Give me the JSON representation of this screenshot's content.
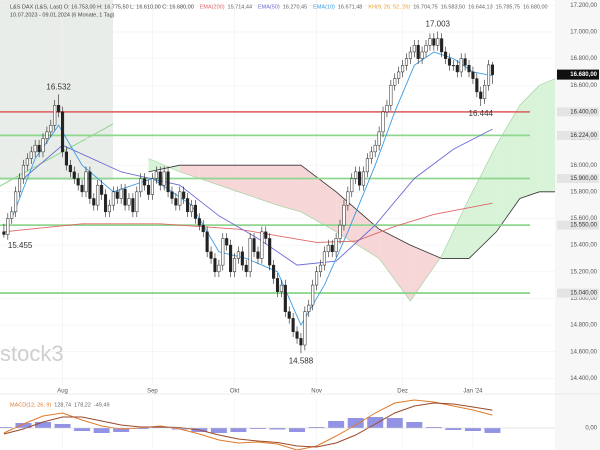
{
  "chart_data": [
    {
      "type": "candlestick",
      "title": "L&S DAX (L&S, Last)  O: 16.753,00  H: 16.775,50  L: 16.610,00  C: 16.680,00",
      "subtitle": "10.07.2023 - 09.01.2024 (6 Monate, 1 Tag)",
      "watermark": "stock3",
      "up_color": "#ffffff",
      "down_color": "#222222",
      "xlim": [
        -1,
        141
      ],
      "ylim": [
        14350,
        17240
      ],
      "grid": true,
      "xticks": [
        {
          "value": 15,
          "label": "Aug"
        },
        {
          "value": 38,
          "label": "Sep"
        },
        {
          "value": 59,
          "label": "Okt"
        },
        {
          "value": 80,
          "label": "Nov"
        },
        {
          "value": 102,
          "label": "Dez"
        },
        {
          "value": 120,
          "label": "Jan '24"
        }
      ],
      "yticks": [
        {
          "value": 14400,
          "label": "14.400,00"
        },
        {
          "value": 14600,
          "label": "14.600,00"
        },
        {
          "value": 14800,
          "label": "14.800,00"
        },
        {
          "value": 15000,
          "label": "15.000,00"
        },
        {
          "value": 15200,
          "label": "15.200,00"
        },
        {
          "value": 15400,
          "label": "15.400,00"
        },
        {
          "value": 15600,
          "label": "15.600,00"
        },
        {
          "value": 15800,
          "label": "15.800,00"
        },
        {
          "value": 16000,
          "label": "16.000,00"
        },
        {
          "value": 16200,
          "label": "16.200,00"
        },
        {
          "value": 16400,
          "label": "16.400,00"
        },
        {
          "value": 16600,
          "label": "16.600,00"
        },
        {
          "value": 16800,
          "label": "16.800,00"
        },
        {
          "value": 17000,
          "label": "17.000,00"
        },
        {
          "value": 17200,
          "label": "17.200,00"
        }
      ],
      "candles": [
        [
          15500,
          15560,
          15455,
          15480
        ],
        [
          15480,
          15640,
          15440,
          15600
        ],
        [
          15600,
          15690,
          15560,
          15650
        ],
        [
          15650,
          15840,
          15610,
          15800
        ],
        [
          15800,
          15940,
          15760,
          15900
        ],
        [
          15900,
          16040,
          15860,
          16000
        ],
        [
          16000,
          16090,
          15960,
          16050
        ],
        [
          16050,
          16140,
          16010,
          16100
        ],
        [
          16100,
          16190,
          16060,
          16150
        ],
        [
          16150,
          16190,
          16060,
          16100
        ],
        [
          16100,
          16240,
          16060,
          16200
        ],
        [
          16200,
          16290,
          16160,
          16250
        ],
        [
          16250,
          16340,
          16210,
          16300
        ],
        [
          16300,
          16490,
          16260,
          16450
        ],
        [
          16450,
          16532,
          16360,
          16400
        ],
        [
          16400,
          16440,
          16060,
          16100
        ],
        [
          16100,
          16140,
          15960,
          16000
        ],
        [
          16000,
          16040,
          15910,
          15950
        ],
        [
          15950,
          15990,
          15860,
          15900
        ],
        [
          15900,
          15940,
          15810,
          15850
        ],
        [
          15850,
          15890,
          15760,
          15800
        ],
        [
          15800,
          15990,
          15760,
          15950
        ],
        [
          15950,
          15990,
          15710,
          15750
        ],
        [
          15750,
          15790,
          15660,
          15700
        ],
        [
          15700,
          15890,
          15660,
          15850
        ],
        [
          15850,
          15890,
          15740,
          15780
        ],
        [
          15780,
          15820,
          15610,
          15650
        ],
        [
          15650,
          15740,
          15610,
          15700
        ],
        [
          15700,
          15840,
          15660,
          15800
        ],
        [
          15800,
          15840,
          15710,
          15750
        ],
        [
          15750,
          15860,
          15710,
          15820
        ],
        [
          15820,
          15860,
          15660,
          15700
        ],
        [
          15700,
          15790,
          15660,
          15750
        ],
        [
          15750,
          15790,
          15610,
          15650
        ],
        [
          15650,
          15840,
          15610,
          15800
        ],
        [
          15800,
          15940,
          15760,
          15900
        ],
        [
          15900,
          15940,
          15810,
          15850
        ],
        [
          15850,
          15890,
          15740,
          15780
        ],
        [
          15780,
          15940,
          15740,
          15900
        ],
        [
          15900,
          15990,
          15860,
          15950
        ],
        [
          15950,
          15990,
          15810,
          15850
        ],
        [
          15850,
          15990,
          15810,
          15950
        ],
        [
          15950,
          15990,
          15760,
          15800
        ],
        [
          15800,
          15840,
          15710,
          15750
        ],
        [
          15750,
          15790,
          15660,
          15700
        ],
        [
          15700,
          15840,
          15660,
          15800
        ],
        [
          15800,
          15840,
          15710,
          15750
        ],
        [
          15750,
          15790,
          15610,
          15650
        ],
        [
          15650,
          15740,
          15610,
          15700
        ],
        [
          15700,
          15740,
          15560,
          15600
        ],
        [
          15600,
          15640,
          15510,
          15550
        ],
        [
          15550,
          15590,
          15460,
          15500
        ],
        [
          15500,
          15540,
          15310,
          15350
        ],
        [
          15350,
          15390,
          15260,
          15300
        ],
        [
          15300,
          15340,
          15160,
          15200
        ],
        [
          15200,
          15290,
          15160,
          15250
        ],
        [
          15250,
          15490,
          15210,
          15450
        ],
        [
          15450,
          15490,
          15360,
          15400
        ],
        [
          15400,
          15440,
          15160,
          15200
        ],
        [
          15200,
          15340,
          15160,
          15300
        ],
        [
          15300,
          15390,
          15260,
          15350
        ],
        [
          15350,
          15390,
          15210,
          15250
        ],
        [
          15250,
          15290,
          15160,
          15200
        ],
        [
          15200,
          15490,
          15160,
          15450
        ],
        [
          15450,
          15490,
          15310,
          15350
        ],
        [
          15350,
          15390,
          15260,
          15300
        ],
        [
          15300,
          15540,
          15260,
          15500
        ],
        [
          15500,
          15540,
          15410,
          15450
        ],
        [
          15450,
          15490,
          15210,
          15250
        ],
        [
          15250,
          15290,
          15110,
          15150
        ],
        [
          15150,
          15190,
          15010,
          15050
        ],
        [
          15050,
          15140,
          15010,
          15100
        ],
        [
          15100,
          15140,
          14860,
          14900
        ],
        [
          14900,
          14940,
          14810,
          14850
        ],
        [
          14850,
          14890,
          14710,
          14750
        ],
        [
          14750,
          14790,
          14660,
          14700
        ],
        [
          14700,
          14740,
          14588,
          14650
        ],
        [
          14650,
          14940,
          14610,
          14900
        ],
        [
          14900,
          14990,
          14860,
          14950
        ],
        [
          14950,
          15140,
          14910,
          15100
        ],
        [
          15100,
          15240,
          15060,
          15200
        ],
        [
          15200,
          15290,
          15160,
          15250
        ],
        [
          15250,
          15390,
          15210,
          15350
        ],
        [
          15350,
          15440,
          15310,
          15400
        ],
        [
          15400,
          15440,
          15310,
          15350
        ],
        [
          15350,
          15490,
          15310,
          15450
        ],
        [
          15450,
          15590,
          15410,
          15550
        ],
        [
          15550,
          15740,
          15510,
          15700
        ],
        [
          15700,
          15840,
          15660,
          15800
        ],
        [
          15800,
          15940,
          15760,
          15900
        ],
        [
          15900,
          15990,
          15860,
          15950
        ],
        [
          15950,
          15990,
          15810,
          15850
        ],
        [
          15850,
          15990,
          15810,
          15950
        ],
        [
          15950,
          16090,
          15910,
          16050
        ],
        [
          16050,
          16140,
          16010,
          16100
        ],
        [
          16100,
          16190,
          16060,
          16150
        ],
        [
          16150,
          16290,
          16110,
          16250
        ],
        [
          16250,
          16440,
          16210,
          16400
        ],
        [
          16400,
          16490,
          16360,
          16450
        ],
        [
          16450,
          16640,
          16410,
          16600
        ],
        [
          16600,
          16690,
          16560,
          16650
        ],
        [
          16650,
          16740,
          16610,
          16700
        ],
        [
          16700,
          16790,
          16660,
          16750
        ],
        [
          16750,
          16840,
          16710,
          16800
        ],
        [
          16800,
          16890,
          16760,
          16850
        ],
        [
          16850,
          16940,
          16810,
          16900
        ],
        [
          16900,
          16940,
          16760,
          16800
        ],
        [
          16800,
          16890,
          16760,
          16850
        ],
        [
          16850,
          16940,
          16810,
          16900
        ],
        [
          16900,
          16990,
          16860,
          16950
        ],
        [
          16950,
          16990,
          16860,
          16900
        ],
        [
          16900,
          17003,
          16860,
          16950
        ],
        [
          16950,
          16990,
          16810,
          16850
        ],
        [
          16850,
          16890,
          16760,
          16800
        ],
        [
          16800,
          16840,
          16710,
          16750
        ],
        [
          16750,
          16790,
          16710,
          16750
        ],
        [
          16750,
          16790,
          16660,
          16700
        ],
        [
          16700,
          16840,
          16660,
          16800
        ],
        [
          16800,
          16840,
          16710,
          16750
        ],
        [
          16750,
          16790,
          16660,
          16700
        ],
        [
          16700,
          16740,
          16610,
          16650
        ],
        [
          16650,
          16690,
          16510,
          16550
        ],
        [
          16550,
          16590,
          16444,
          16500
        ],
        [
          16500,
          16640,
          16460,
          16600
        ],
        [
          16600,
          16790,
          16560,
          16753
        ],
        [
          16753,
          16775.5,
          16610,
          16680
        ]
      ],
      "series": [
        {
          "name": "EMA(200)",
          "value_label": "15.714,44",
          "color": "#e06666",
          "x": [
            0,
            20,
            40,
            60,
            80,
            90,
            100,
            110,
            125
          ],
          "values": [
            15500,
            15560,
            15560,
            15520,
            15420,
            15430,
            15540,
            15630,
            15714.44
          ]
        },
        {
          "name": "EMA(50)",
          "value_label": "16.270,45",
          "color": "#6b6bd6",
          "x": [
            5,
            15,
            30,
            45,
            55,
            65,
            75,
            85,
            95,
            105,
            115,
            125
          ],
          "values": [
            15900,
            16150,
            15950,
            15850,
            15620,
            15450,
            15250,
            15280,
            15550,
            15900,
            16120,
            16270.45
          ]
        },
        {
          "name": "EMA(10)",
          "value_label": "16.671,48",
          "color": "#3d9be0",
          "x": [
            2,
            8,
            14,
            20,
            28,
            38,
            48,
            55,
            62,
            70,
            76,
            82,
            88,
            95,
            100,
            105,
            110,
            115,
            120,
            125
          ],
          "values": [
            15600,
            16050,
            16300,
            16000,
            15800,
            15900,
            15700,
            15350,
            15300,
            15200,
            14800,
            15100,
            15500,
            16000,
            16400,
            16750,
            16850,
            16800,
            16700,
            16671.48
          ]
        }
      ],
      "cloud": {
        "name": "KH(9, 26, 52, 26)",
        "value_labels": [
          "16.704,75",
          "16.583,50",
          "16.644,13",
          "15.785,75",
          "16.680,00"
        ],
        "color": "#e8a33a",
        "up_color": "#d8f3d8",
        "down_color": "#f6d6d6",
        "line_color": "#333333",
        "x": [
          37,
          45,
          50,
          60,
          70,
          76,
          85,
          96,
          104,
          112,
          119,
          126,
          132,
          137,
          141
        ],
        "span_a": [
          16050,
          15950,
          15900,
          15800,
          15700,
          15650,
          15500,
          15300,
          14980,
          15320,
          15750,
          16150,
          16450,
          16600,
          16650
        ],
        "span_b": [
          15950,
          16000,
          16000,
          16000,
          16000,
          16000,
          15800,
          15520,
          15400,
          15300,
          15300,
          15500,
          15750,
          15800,
          15800
        ]
      },
      "levels": [
        {
          "value": 16400,
          "label": "16.400,00",
          "color": "#e07070"
        },
        {
          "value": 16224,
          "label": "16.224,00",
          "color": "#8fd68f"
        },
        {
          "value": 15900,
          "label": "15.900,00",
          "color": "#8fd68f"
        },
        {
          "value": 15550,
          "label": "15.550,00",
          "color": "#8fd68f"
        },
        {
          "value": 15040,
          "label": "15.040,00",
          "color": "#8fd68f"
        }
      ],
      "last_price": {
        "value": 16680,
        "label": "16.680,00"
      },
      "annotations": [
        {
          "x": 14,
          "value": 16532,
          "label": "16.532",
          "position": "above"
        },
        {
          "x": 0,
          "value": 15455,
          "label": "15.455",
          "position": "below"
        },
        {
          "x": 111,
          "value": 17003,
          "label": "17.003",
          "position": "above"
        },
        {
          "x": 122,
          "value": 16444,
          "label": "16.444",
          "position": "below"
        },
        {
          "x": 76,
          "value": 14588,
          "label": "14.588",
          "position": "below"
        }
      ]
    },
    {
      "type": "macd",
      "title": "MACD(12, 26, 9)",
      "value_labels": [
        "128,74",
        "178,22",
        "-49,49"
      ],
      "xlim": [
        -1,
        141
      ],
      "ylim": [
        -200,
        300
      ],
      "yticks": [
        {
          "value": 0,
          "label": "0,00"
        }
      ],
      "x": [
        0,
        5,
        10,
        15,
        20,
        25,
        30,
        35,
        40,
        45,
        50,
        55,
        60,
        65,
        70,
        75,
        80,
        85,
        90,
        95,
        100,
        105,
        110,
        115,
        120,
        125
      ],
      "series": [
        {
          "name": "MACD",
          "color": "#e07a2a",
          "values": [
            -50,
            40,
            120,
            150,
            80,
            20,
            -10,
            0,
            20,
            -10,
            -60,
            -120,
            -150,
            -140,
            -160,
            -220,
            -180,
            -80,
            30,
            150,
            250,
            280,
            260,
            220,
            180,
            128.74
          ]
        },
        {
          "name": "Signal",
          "color": "#9a4a2a",
          "values": [
            -60,
            -10,
            60,
            110,
            110,
            70,
            30,
            10,
            10,
            5,
            -20,
            -70,
            -110,
            -130,
            -145,
            -180,
            -190,
            -150,
            -70,
            40,
            150,
            220,
            250,
            240,
            210,
            178.22
          ]
        }
      ],
      "histogram": {
        "color": "#6f6fdc",
        "values": [
          10,
          50,
          60,
          40,
          -30,
          -50,
          -40,
          -10,
          10,
          -15,
          -40,
          -50,
          -40,
          -10,
          -15,
          -40,
          10,
          70,
          100,
          110,
          100,
          60,
          10,
          -20,
          -30,
          -49.49
        ]
      }
    }
  ]
}
